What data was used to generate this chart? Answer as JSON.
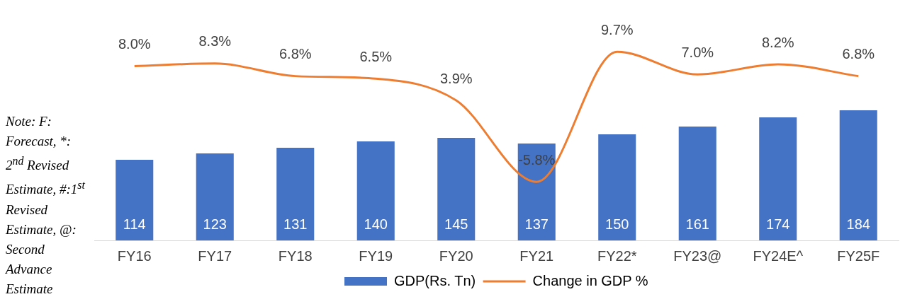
{
  "chart_data": {
    "type": "bar",
    "categories": [
      "FY16",
      "FY17",
      "FY18",
      "FY19",
      "FY20",
      "FY21",
      "FY22*",
      "FY23@",
      "FY24E^",
      "FY25F"
    ],
    "series": [
      {
        "name": "GDP(Rs. Tn)",
        "color": "#4472c4",
        "values": [
          114,
          123,
          131,
          140,
          145,
          137,
          150,
          161,
          174,
          184
        ]
      },
      {
        "name": "Change in GDP %",
        "type": "line",
        "axis": "y2",
        "color": "#ed7d31",
        "values": [
          8.0,
          8.3,
          6.8,
          6.5,
          3.9,
          -5.8,
          9.7,
          7.0,
          8.2,
          6.8
        ],
        "value_labels": [
          "8.0%",
          "8.3%",
          "6.8%",
          "6.5%",
          "3.9%",
          "-5.8%",
          "9.7%",
          "7.0%",
          "8.2%",
          "6.8%"
        ]
      }
    ],
    "tick_labels": "x",
    "grid": false,
    "legend": "bottom",
    "marker": "none",
    "data_labels": true,
    "annotations": [
      "Note: F: Forecast, *: 2$^{nd}$ Revised Estimate, #:1$^{st}$ Revised Estimate, @: Second Advance Estimate"
    ]
  }
}
